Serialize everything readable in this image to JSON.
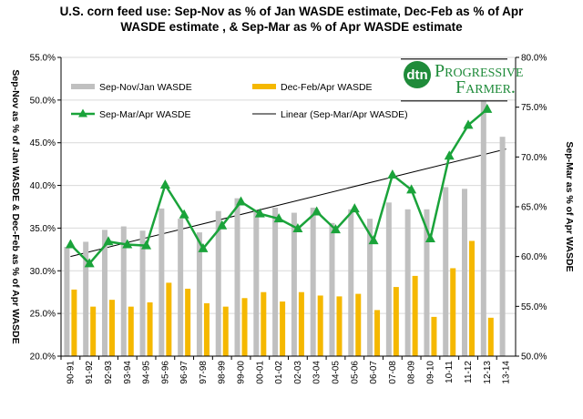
{
  "title_line1": "U.S. corn feed use:   Sep-Nov as % of Jan WASDE  estimate, Dec-Feb as % of Apr",
  "title_line2": "WASDE  estimate , & Sep-Mar as % of Apr WASDE  estimate",
  "logo": {
    "mark": "dtn",
    "word1": "Progressive",
    "word2": "Farmer."
  },
  "chart_data": {
    "type": "bar",
    "categories": [
      "90-91",
      "91-92",
      "92-93",
      "93-94",
      "94-95",
      "95-96",
      "96-97",
      "97-98",
      "98-99",
      "99-00",
      "00-01",
      "01-02",
      "02-03",
      "03-04",
      "04-05",
      "05-06",
      "06-07",
      "07-08",
      "08-09",
      "09-10",
      "10-11",
      "11-12",
      "12-13",
      "13-14"
    ],
    "series": [
      {
        "name": "Sep-Nov/Jan WASDE",
        "type": "bar",
        "axis": "left",
        "color": "#c0c0c0",
        "values": [
          32.8,
          33.4,
          34.8,
          35.2,
          34.7,
          37.3,
          36.1,
          34.5,
          37.0,
          38.5,
          37.0,
          37.4,
          36.8,
          37.4,
          35.6,
          37.2,
          36.1,
          38.0,
          37.2,
          37.2,
          39.8,
          39.6,
          50.0,
          45.7
        ]
      },
      {
        "name": "Dec-Feb/Apr WASDE",
        "type": "bar",
        "axis": "left",
        "color": "#f5b800",
        "values": [
          27.8,
          25.8,
          26.6,
          25.8,
          26.3,
          28.6,
          27.9,
          26.2,
          25.8,
          26.8,
          27.5,
          26.4,
          27.5,
          27.1,
          27.0,
          27.3,
          25.4,
          28.1,
          29.4,
          24.6,
          30.3,
          33.5,
          24.5,
          null
        ]
      },
      {
        "name": "Sep-Mar/Apr WASDE",
        "type": "line",
        "axis": "right",
        "color": "#1aa33a",
        "marker": "triangle",
        "values": [
          61.2,
          59.3,
          61.5,
          61.2,
          61.1,
          67.2,
          64.2,
          60.8,
          63.1,
          65.5,
          64.3,
          63.8,
          62.8,
          64.5,
          62.7,
          64.8,
          61.6,
          68.2,
          66.7,
          61.8,
          70.1,
          73.2,
          74.8,
          null
        ]
      },
      {
        "name": "Linear (Sep-Mar/Apr WASDE)",
        "type": "trendline",
        "axis": "right",
        "color": "#000000",
        "start": 60.0,
        "end": 70.8
      }
    ],
    "yleft": {
      "label": "Sep-Nov as % of Jan WASDE  & Dec-Feb as % of Apr WASDE",
      "min": 20,
      "max": 55,
      "step": 5,
      "ticks": [
        "20.0%",
        "25.0%",
        "30.0%",
        "35.0%",
        "40.0%",
        "45.0%",
        "50.0%",
        "55.0%"
      ]
    },
    "yright": {
      "label": "Sep-Mar as % of Apr WASDE",
      "min": 50,
      "max": 80,
      "step": 5,
      "ticks": [
        "50.0%",
        "55.0%",
        "60.0%",
        "65.0%",
        "70.0%",
        "75.0%",
        "80.0%"
      ]
    },
    "grid": true,
    "legend": "top-left, inside plot"
  }
}
